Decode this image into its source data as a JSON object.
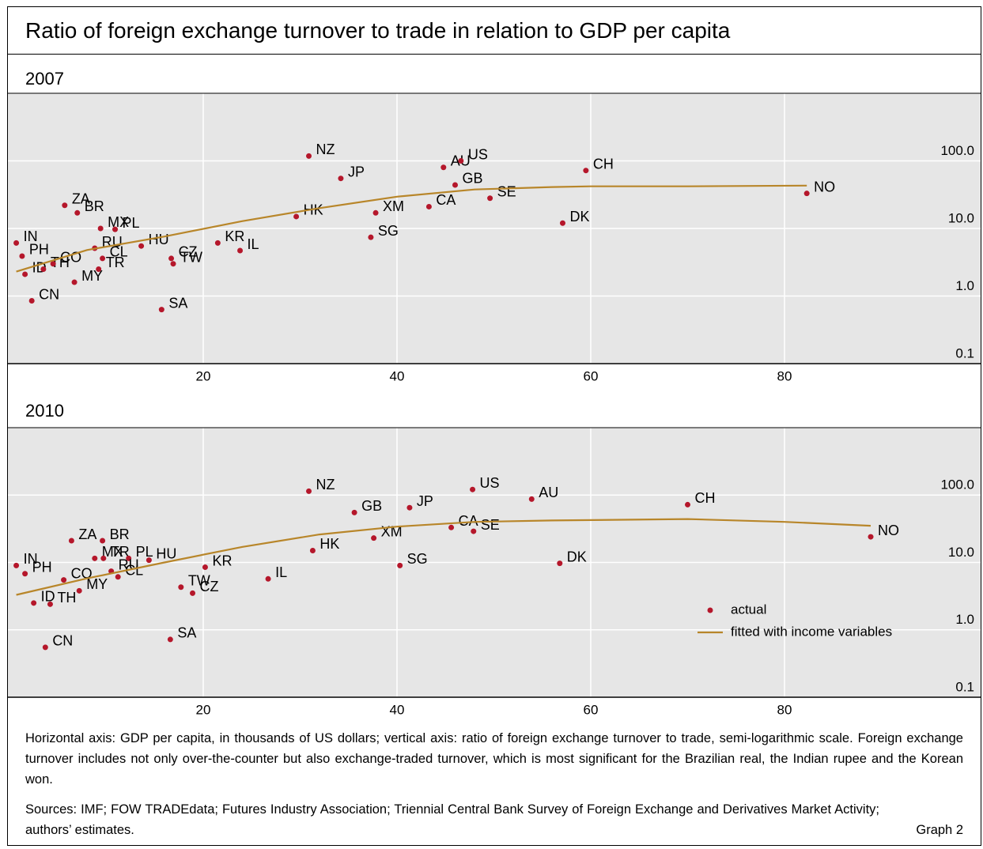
{
  "title": "Ratio of foreign exchange turnover to trade in relation to GDP per capita",
  "note": "Horizontal axis: GDP per capita, in thousands of US dollars; vertical axis: ratio of foreign exchange turnover to trade, semi-logarithmic scale. Foreign exchange turnover includes not only over-the-counter but also exchange-traded turnover, which is most significant for the Brazilian real, the Indian rupee and the Korean won.",
  "sources": "Sources: IMF; FOW TRADEdata; Futures Industry Association; Triennial Central Bank Survey of Foreign Exchange and Derivatives Market Activity; authors’ estimates.",
  "graph_label": "Graph 2",
  "chart_data": [
    {
      "type": "scatter",
      "title": "2007",
      "xlim": [
        0,
        100
      ],
      "xticks": [
        20,
        40,
        60,
        80
      ],
      "ylim": [
        0.1,
        1000
      ],
      "ylog": true,
      "yticks": [
        0.1,
        {
          "value": 1,
          "label": "1.0"
        },
        {
          "value": 10,
          "label": "10.0"
        },
        {
          "value": 100,
          "label": "100.0"
        }
      ],
      "grid": true,
      "series": [
        {
          "type": "scatter",
          "color": "#b5172b",
          "labels": [
            "IN",
            "PH",
            "ID",
            "TH",
            "CO",
            "CN",
            "MY",
            "ZA",
            "BR",
            "MX",
            "PL",
            "RU",
            "CL",
            "TR",
            "HU",
            "CZ",
            "TW",
            "SA",
            "KR",
            "IL",
            "HK",
            "NZ",
            "JP",
            "XM",
            "SG",
            "CA",
            "AU",
            "US",
            "GB",
            "SE",
            "DK",
            "CH",
            "NO"
          ],
          "x": [
            0.7,
            1.3,
            1.6,
            3.5,
            4.5,
            2.3,
            6.7,
            5.7,
            7.0,
            9.4,
            10.9,
            8.8,
            9.6,
            9.2,
            13.6,
            16.7,
            16.9,
            15.7,
            21.5,
            23.8,
            29.6,
            30.9,
            34.2,
            37.8,
            37.3,
            43.3,
            44.8,
            46.6,
            46.0,
            49.6,
            57.1,
            59.5,
            82.3
          ],
          "values": [
            6.1,
            3.9,
            2.1,
            2.5,
            3.0,
            0.85,
            1.6,
            22,
            17,
            10,
            9.7,
            5.1,
            3.6,
            2.5,
            5.5,
            3.6,
            3.0,
            0.63,
            6.1,
            4.7,
            15,
            118,
            55,
            17,
            7.4,
            21,
            80,
            100,
            44,
            28,
            12,
            72,
            33
          ]
        },
        {
          "type": "line",
          "color": "#b8862a",
          "x": [
            0.7,
            8,
            16,
            24,
            32,
            40,
            48,
            56,
            60,
            70,
            82.3
          ],
          "values": [
            2.3,
            4.8,
            7.6,
            12.8,
            20,
            29.5,
            37.7,
            41,
            42,
            42,
            43
          ]
        }
      ]
    },
    {
      "type": "scatter",
      "title": "2010",
      "xlim": [
        0,
        100
      ],
      "xticks": [
        20,
        40,
        60,
        80
      ],
      "ylim": [
        0.1,
        1000
      ],
      "ylog": true,
      "yticks": [
        0.1,
        {
          "value": 1,
          "label": "1.0"
        },
        {
          "value": 10,
          "label": "10.0"
        },
        {
          "value": 100,
          "label": "100.0"
        }
      ],
      "grid": true,
      "legend": "lower right",
      "series": [
        {
          "type": "scatter",
          "name": "actual",
          "color": "#b5172b",
          "labels": [
            "IN",
            "PH",
            "ID",
            "TH",
            "CO",
            "CN",
            "MY",
            "ZA",
            "BR",
            "MX",
            "TR",
            "PL",
            "HU",
            "RU",
            "CL",
            "TW",
            "CZ",
            "SA",
            "KR",
            "IL",
            "HK",
            "NZ",
            "GB",
            "JP",
            "XM",
            "SG",
            "CA",
            "SE",
            "US",
            "AU",
            "DK",
            "CH",
            "NO"
          ],
          "x": [
            0.7,
            1.6,
            2.5,
            4.2,
            5.6,
            3.7,
            7.2,
            6.4,
            9.6,
            8.8,
            9.7,
            12.3,
            14.4,
            10.5,
            11.2,
            17.7,
            18.9,
            16.6,
            20.2,
            26.7,
            31.3,
            30.9,
            35.6,
            41.3,
            37.6,
            40.3,
            45.6,
            47.9,
            47.8,
            53.9,
            56.8,
            70.0,
            88.9
          ],
          "values": [
            9.0,
            6.8,
            2.5,
            2.4,
            5.5,
            0.55,
            3.8,
            21,
            21,
            11.5,
            11.5,
            11.5,
            10.8,
            7.4,
            6.1,
            4.3,
            3.5,
            0.72,
            8.5,
            5.7,
            15,
            114,
            55,
            65,
            23,
            9.0,
            33,
            29,
            121,
            87,
            9.7,
            72,
            24
          ]
        },
        {
          "type": "line",
          "name": "fitted with income variables",
          "color": "#b8862a",
          "x": [
            0.7,
            8,
            16,
            24,
            32,
            40,
            48,
            56,
            70,
            80,
            88.9
          ],
          "values": [
            3.3,
            5.8,
            10,
            17,
            26,
            34,
            40,
            42,
            44,
            40,
            35
          ]
        }
      ]
    }
  ]
}
